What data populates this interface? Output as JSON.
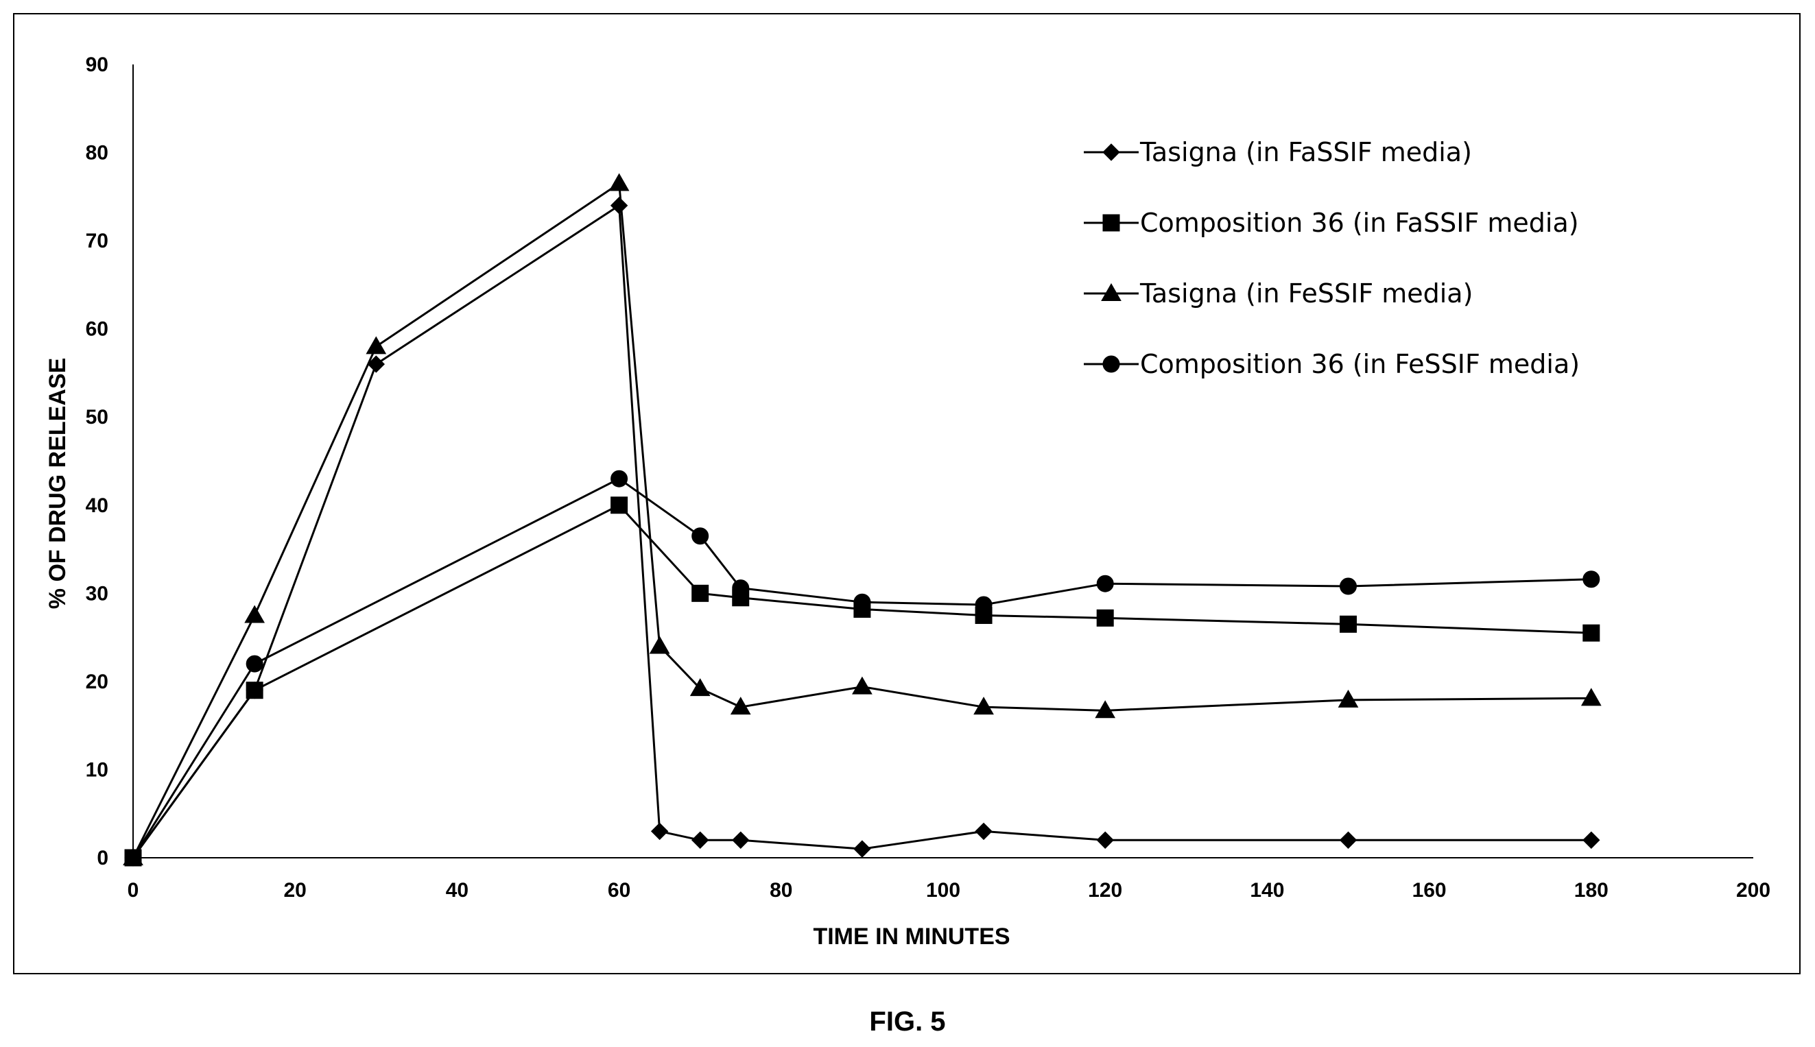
{
  "chart_data": {
    "type": "line",
    "title": "",
    "caption": "FIG. 5",
    "xlabel": "TIME IN MINUTES",
    "ylabel": "% OF DRUG RELEASE",
    "xlim": [
      0,
      200
    ],
    "ylim": [
      0,
      90
    ],
    "xticks": [
      0,
      20,
      40,
      60,
      80,
      100,
      120,
      140,
      160,
      180,
      200
    ],
    "yticks": [
      0,
      10,
      20,
      30,
      40,
      50,
      60,
      70,
      80,
      90
    ],
    "grid": false,
    "legend_position": "top-right",
    "series": [
      {
        "name": "Tasigna (in FaSSIF media)",
        "marker": "diamond",
        "x": [
          0,
          15,
          30,
          60,
          65,
          70,
          75,
          90,
          105,
          120,
          150,
          180
        ],
        "y": [
          0,
          19,
          56,
          74,
          3,
          2,
          2,
          1,
          3,
          2,
          2,
          2
        ]
      },
      {
        "name": "Composition 36 (in FaSSIF media)",
        "marker": "square",
        "x": [
          0,
          15,
          60,
          70,
          75,
          90,
          105,
          120,
          150,
          180
        ],
        "y": [
          0,
          19,
          40,
          30,
          29.5,
          28.2,
          27.5,
          27.2,
          26.5,
          25.5
        ]
      },
      {
        "name": "Tasigna (in FeSSIF media)",
        "marker": "triangle",
        "x": [
          0,
          15,
          30,
          60,
          65,
          70,
          75,
          90,
          105,
          120,
          150,
          180
        ],
        "y": [
          0,
          27.5,
          58,
          76.5,
          24,
          19.2,
          17.1,
          19.4,
          17.1,
          16.7,
          17.9,
          18.1
        ]
      },
      {
        "name": "Composition 36 (in FeSSIF media)",
        "marker": "circle",
        "x": [
          0,
          15,
          60,
          70,
          75,
          90,
          105,
          120,
          150,
          180
        ],
        "y": [
          0,
          22,
          43,
          36.5,
          30.6,
          29,
          28.7,
          31.1,
          30.8,
          31.6
        ]
      }
    ]
  }
}
